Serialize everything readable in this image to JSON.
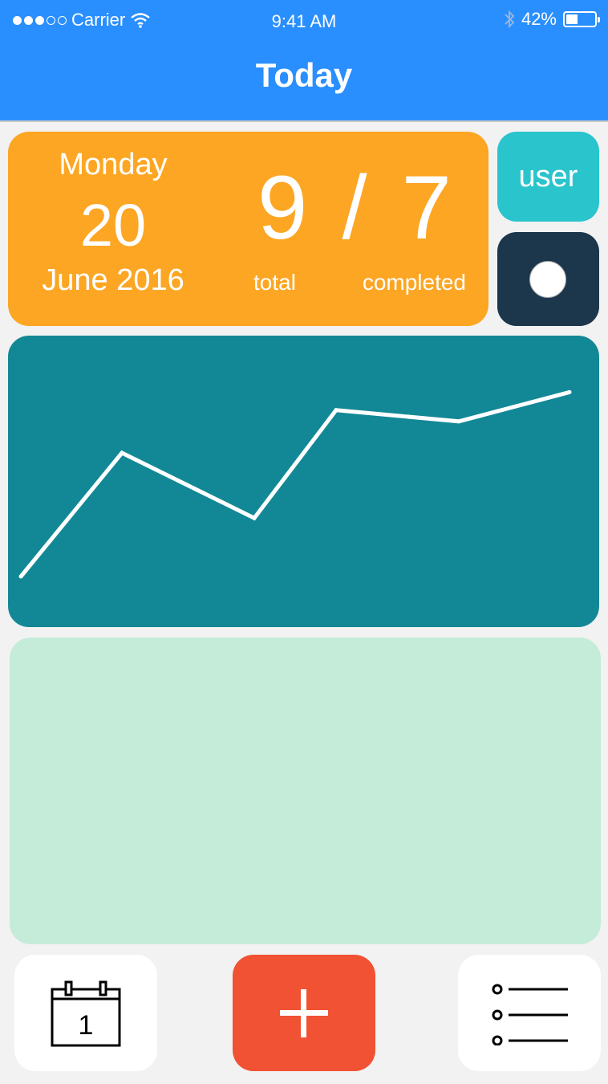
{
  "status_bar": {
    "signal_dots_filled": 3,
    "signal_dots_total": 5,
    "carrier": "Carrier",
    "wifi_icon": "wifi-icon",
    "time": "9:41 AM",
    "bluetooth_icon": "bluetooth-icon",
    "battery_percent": "42%",
    "battery_level": 0.42
  },
  "nav": {
    "title": "Today"
  },
  "date_card": {
    "day_name": "Monday",
    "day_number": "20",
    "month_year": "June 2016",
    "ratio": "9 / 7",
    "total_label": "total",
    "completed_label": "completed"
  },
  "user_button": {
    "label": "user"
  },
  "chart_data": {
    "type": "line",
    "series": [
      {
        "values": [
          0,
          5.5,
          2.6,
          7.4,
          6.9,
          8.2
        ]
      }
    ],
    "ylim": [
      0,
      10
    ],
    "grid": false
  },
  "tabs": {
    "calendar_icon": "calendar-icon",
    "calendar_day": "1",
    "add_icon": "plus-icon",
    "list_icon": "list-icon"
  },
  "colors": {
    "nav": "#2a8ffe",
    "date_card": "#fca624",
    "user_button": "#2ac4cc",
    "toggle_button": "#1c364c",
    "chart_card": "#128896",
    "empty_card": "#c4ecd8",
    "add_button": "#f15233"
  }
}
